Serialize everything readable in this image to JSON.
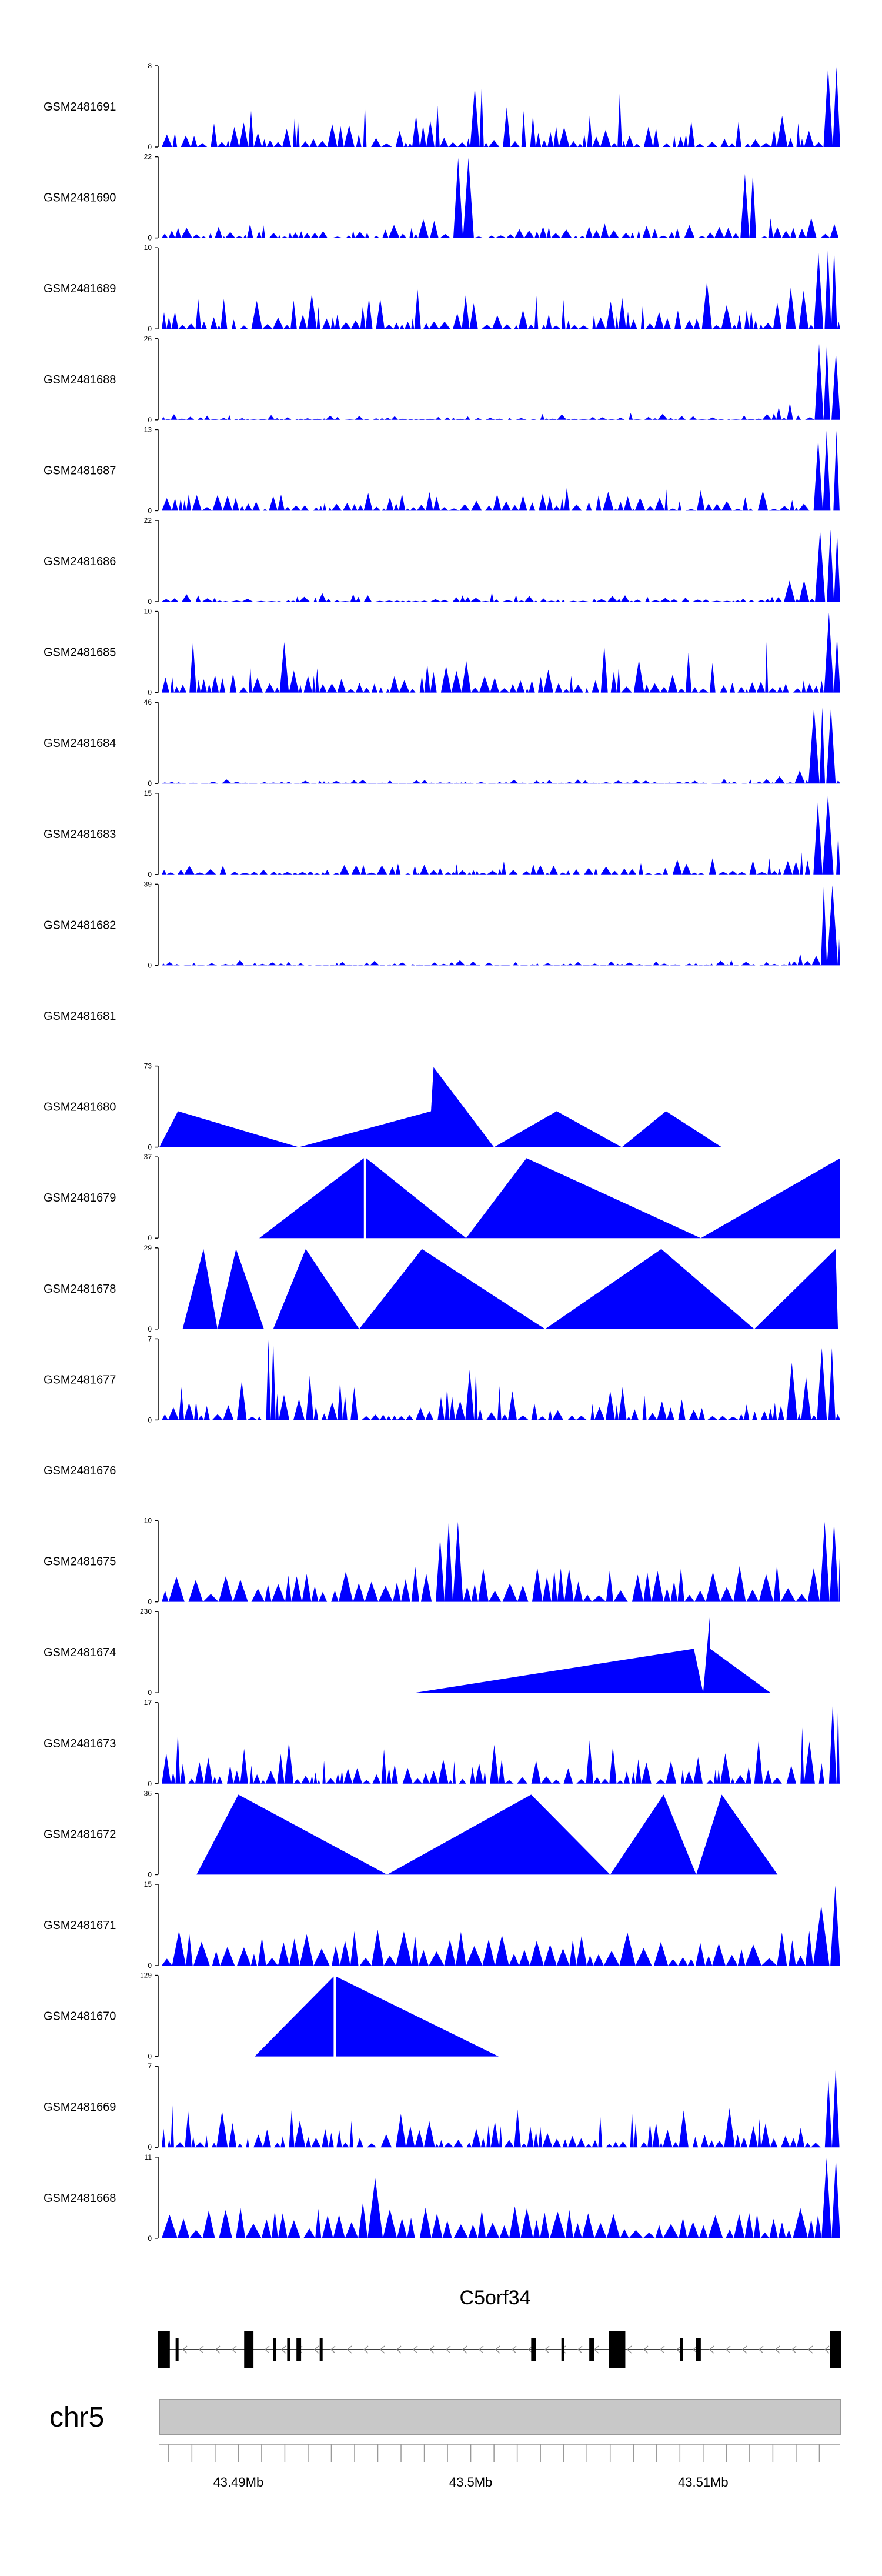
{
  "chart_data": {
    "type": "area",
    "fill_color": "#0000ff",
    "x_domain": [
      43.4866,
      43.5159
    ],
    "tracks": [
      {
        "name": "GSM2481691",
        "ymin": 0,
        "ymax": 8,
        "pattern": "dense",
        "seed": 11,
        "tail": 0.85,
        "peaks": [
          [
            43.5003,
            0.75
          ],
          [
            43.5155,
            1.0
          ]
        ]
      },
      {
        "name": "GSM2481690",
        "ymin": 0,
        "ymax": 22,
        "pattern": "sparse",
        "seed": 2,
        "tail": 0.35,
        "peaks": [
          [
            43.4998,
            1.0
          ],
          [
            43.5121,
            0.8
          ]
        ]
      },
      {
        "name": "GSM2481689",
        "ymin": 0,
        "ymax": 10,
        "pattern": "dense",
        "seed": 3,
        "tail": 0.85,
        "peaks": [
          [
            43.5155,
            1.0
          ],
          [
            43.5152,
            0.95
          ]
        ]
      },
      {
        "name": "GSM2481688",
        "ymin": 0,
        "ymax": 26,
        "pattern": "dense",
        "seed": 4,
        "tail": 0.12,
        "peaks": [
          [
            43.5153,
            0.95
          ],
          [
            43.5155,
            0.85
          ]
        ]
      },
      {
        "name": "GSM2481687",
        "ymin": 0,
        "ymax": 13,
        "pattern": "dense",
        "seed": 5,
        "tail": 0.4,
        "peaks": [
          [
            43.5156,
            1.0
          ],
          [
            43.5153,
            0.9
          ]
        ]
      },
      {
        "name": "GSM2481686",
        "ymin": 0,
        "ymax": 22,
        "pattern": "dense",
        "seed": 6,
        "tail": 0.15,
        "peaks": [
          [
            43.5154,
            0.9
          ],
          [
            43.5156,
            0.85
          ]
        ]
      },
      {
        "name": "GSM2481685",
        "ymin": 0,
        "ymax": 10,
        "pattern": "dense",
        "seed": 7,
        "tail": 0.85,
        "peaks": [
          [
            43.5154,
            1.0
          ],
          [
            43.5159,
            0.7
          ]
        ]
      },
      {
        "name": "GSM2481684",
        "ymin": 0,
        "ymax": 46,
        "pattern": "dense",
        "seed": 8,
        "tail": 0.08,
        "peaks": [
          [
            43.5152,
            0.95
          ],
          [
            43.5154,
            0.9
          ]
        ]
      },
      {
        "name": "GSM2481683",
        "ymin": 0,
        "ymax": 15,
        "pattern": "dense",
        "seed": 9,
        "tail": 0.25,
        "peaks": [
          [
            43.5155,
            1.0
          ],
          [
            43.5153,
            0.9
          ]
        ]
      },
      {
        "name": "GSM2481682",
        "ymin": 0,
        "ymax": 39,
        "pattern": "dense",
        "seed": 10,
        "tail": 0.1,
        "peaks": [
          [
            43.5153,
            1.0
          ],
          [
            43.5155,
            0.85
          ]
        ]
      },
      {
        "name": "GSM2481681",
        "pattern": "empty"
      },
      {
        "name": "GSM2481680",
        "ymin": 0,
        "ymax": 73,
        "pattern": "triangles",
        "triangles": [
          [
            43.4866,
            43.4874,
            43.4926,
            0.45
          ],
          [
            43.4926,
            43.4983,
            43.4983,
            0.45
          ],
          [
            43.4982,
            43.4984,
            43.501,
            1.0
          ],
          [
            43.501,
            43.5037,
            43.5065,
            0.45
          ],
          [
            43.5065,
            43.5084,
            43.5108,
            0.45
          ]
        ]
      },
      {
        "name": "GSM2481679",
        "ymin": 0,
        "ymax": 37,
        "pattern": "triangles",
        "triangles": [
          [
            43.4909,
            43.4954,
            43.4954,
            1.0
          ],
          [
            43.4955,
            43.4955,
            43.4998,
            1.0
          ],
          [
            43.4998,
            43.5024,
            43.5099,
            1.0
          ],
          [
            43.5099,
            43.5159,
            43.5159,
            1.0
          ]
        ]
      },
      {
        "name": "GSM2481678",
        "ymin": 0,
        "ymax": 29,
        "pattern": "triangles",
        "triangles": [
          [
            43.4876,
            43.4885,
            43.4891,
            1.0
          ],
          [
            43.4891,
            43.4899,
            43.4911,
            1.0
          ],
          [
            43.4915,
            43.4929,
            43.4952,
            1.0
          ],
          [
            43.4952,
            43.4979,
            43.5032,
            1.0
          ],
          [
            43.5032,
            43.5082,
            43.5122,
            1.0
          ],
          [
            43.5122,
            43.5157,
            43.5158,
            1.0
          ]
        ]
      },
      {
        "name": "GSM2481677",
        "ymin": 0,
        "ymax": 7,
        "pattern": "dense",
        "seed": 14,
        "tail": 0.8,
        "peaks": [
          [
            43.4914,
            1.0
          ],
          [
            43.5153,
            0.9
          ]
        ]
      },
      {
        "name": "GSM2481676",
        "pattern": "empty"
      },
      {
        "name": "GSM2481675",
        "ymin": 0,
        "ymax": 10,
        "pattern": "spiky",
        "seed": 16,
        "tail": 0.9,
        "peaks": [
          [
            43.4993,
            1.0
          ],
          [
            43.499,
            0.8
          ],
          [
            43.5153,
            1.0
          ],
          [
            43.5158,
            0.55
          ]
        ]
      },
      {
        "name": "GSM2481674",
        "ymin": 0,
        "ymax": 230,
        "pattern": "triangles",
        "triangles": [
          [
            43.4976,
            43.5096,
            43.5096,
            0.55
          ],
          [
            43.5096,
            43.5096,
            43.51,
            0.55
          ],
          [
            43.51,
            43.5103,
            43.5103,
            1.0
          ],
          [
            43.5103,
            43.5103,
            43.5129,
            0.55
          ]
        ]
      },
      {
        "name": "GSM2481673",
        "ymin": 0,
        "ymax": 17,
        "pattern": "dense",
        "seed": 18,
        "tail": 0.85,
        "peaks": [
          [
            43.5158,
            1.0
          ],
          [
            43.5156,
            0.8
          ]
        ]
      },
      {
        "name": "GSM2481672",
        "ymin": 0,
        "ymax": 36,
        "pattern": "triangles",
        "triangles": [
          [
            43.4882,
            43.49,
            43.4964,
            1.0
          ],
          [
            43.4964,
            43.5026,
            43.506,
            1.0
          ],
          [
            43.506,
            43.5083,
            43.5097,
            1.0
          ],
          [
            43.5097,
            43.5108,
            43.5132,
            1.0
          ]
        ]
      },
      {
        "name": "GSM2481671",
        "ymin": 0,
        "ymax": 15,
        "pattern": "spiky",
        "seed": 20,
        "tail": 0.9,
        "peaks": [
          [
            43.5159,
            1.0
          ],
          [
            43.5156,
            0.75
          ]
        ]
      },
      {
        "name": "GSM2481670",
        "ymin": 0,
        "ymax": 129,
        "pattern": "triangles",
        "triangles": [
          [
            43.4907,
            43.4941,
            43.4941,
            1.0
          ],
          [
            43.4942,
            43.4942,
            43.5012,
            1.0
          ]
        ]
      },
      {
        "name": "GSM2481669",
        "ymin": 0,
        "ymax": 7,
        "pattern": "dense",
        "seed": 22,
        "tail": 0.85,
        "peaks": [
          [
            43.5158,
            1.0
          ],
          [
            43.5155,
            0.85
          ]
        ]
      },
      {
        "name": "GSM2481668",
        "ymin": 0,
        "ymax": 11,
        "pattern": "spiky",
        "seed": 23,
        "tail": 0.8,
        "peaks": [
          [
            43.5155,
            1.0
          ],
          [
            43.4958,
            0.75
          ],
          [
            43.4955,
            0.45
          ]
        ]
      }
    ],
    "gene": {
      "name": "C5orf34",
      "strand": "-",
      "start": 43.4866,
      "end": 43.5159,
      "exons": [
        [
          43.4866,
          43.487,
          1
        ],
        [
          43.4873,
          43.4874,
          1
        ],
        [
          43.4903,
          43.4906,
          1
        ],
        [
          43.4915,
          43.4916,
          1
        ],
        [
          43.4921,
          43.4922,
          1
        ],
        [
          43.4925,
          43.4927,
          1
        ],
        [
          43.4935,
          43.4936,
          1
        ],
        [
          43.5026,
          43.5028,
          1
        ],
        [
          43.5039,
          43.504,
          1
        ],
        [
          43.5051,
          43.5053,
          1
        ],
        [
          43.506,
          43.5066,
          2
        ],
        [
          43.509,
          43.5091,
          1
        ],
        [
          43.5097,
          43.5099,
          1
        ],
        [
          43.5155,
          43.5159,
          1
        ]
      ]
    },
    "chromosome": {
      "label": "chr5",
      "ticks": [
        43.487,
        43.488,
        43.489,
        43.49,
        43.491,
        43.492,
        43.493,
        43.494,
        43.495,
        43.496,
        43.497,
        43.498,
        43.499,
        43.5,
        43.501,
        43.502,
        43.503,
        43.504,
        43.505,
        43.506,
        43.507,
        43.508,
        43.509,
        43.51,
        43.511,
        43.512,
        43.513,
        43.514,
        43.515
      ],
      "labeled_ticks": [
        {
          "x": 43.49,
          "label": "43.49Mb"
        },
        {
          "x": 43.5,
          "label": "43.5Mb"
        },
        {
          "x": 43.51,
          "label": "43.51Mb"
        }
      ]
    }
  }
}
